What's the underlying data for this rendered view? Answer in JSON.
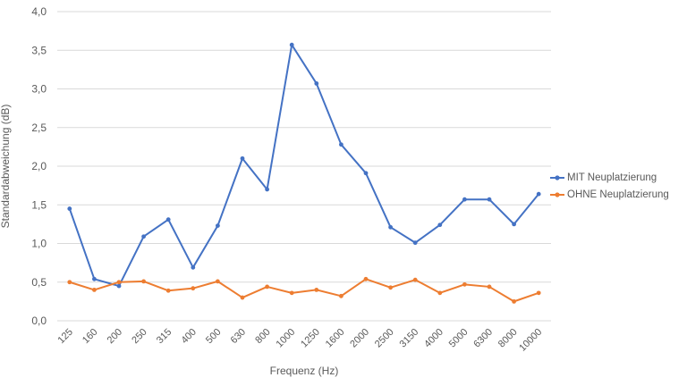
{
  "chart_data": {
    "type": "line",
    "title": "",
    "xlabel": "Frequenz (Hz)",
    "ylabel": "Standardabweichung (dB)",
    "categories": [
      "125",
      "160",
      "200",
      "250",
      "315",
      "400",
      "500",
      "630",
      "800",
      "1000",
      "1250",
      "1600",
      "2000",
      "2500",
      "3150",
      "4000",
      "5000",
      "6300",
      "8000",
      "10000"
    ],
    "series": [
      {
        "name": "MIT Neuplatzierung",
        "color": "#4472C4",
        "values": [
          1.45,
          0.54,
          0.45,
          1.09,
          1.31,
          0.69,
          1.23,
          2.1,
          1.7,
          3.57,
          3.07,
          2.28,
          1.91,
          1.21,
          1.01,
          1.24,
          1.57,
          1.57,
          1.25,
          1.64
        ]
      },
      {
        "name": "OHNE Neuplatzierung",
        "color": "#ED7D31",
        "values": [
          0.5,
          0.4,
          0.5,
          0.51,
          0.39,
          0.42,
          0.51,
          0.3,
          0.44,
          0.36,
          0.4,
          0.32,
          0.54,
          0.43,
          0.53,
          0.36,
          0.47,
          0.44,
          0.25,
          0.36
        ]
      }
    ],
    "ylim": [
      0,
      4
    ],
    "ytick_step": 0.5,
    "decimal_separator": ",",
    "grid": "horizontal",
    "legend_position": "right",
    "colors": {
      "text": "#595959",
      "gridline": "#D9D9D9",
      "background": "#FFFFFF"
    }
  }
}
